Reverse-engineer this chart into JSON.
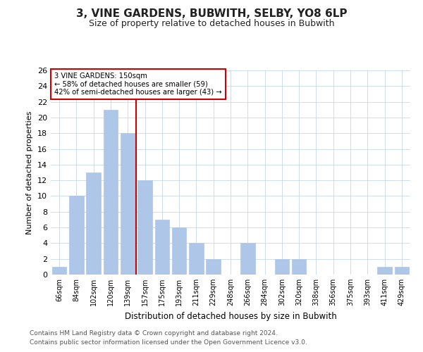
{
  "title": "3, VINE GARDENS, BUBWITH, SELBY, YO8 6LP",
  "subtitle": "Size of property relative to detached houses in Bubwith",
  "xlabel": "Distribution of detached houses by size in Bubwith",
  "ylabel": "Number of detached properties",
  "categories": [
    "66sqm",
    "84sqm",
    "102sqm",
    "120sqm",
    "139sqm",
    "157sqm",
    "175sqm",
    "193sqm",
    "211sqm",
    "229sqm",
    "248sqm",
    "266sqm",
    "284sqm",
    "302sqm",
    "320sqm",
    "338sqm",
    "356sqm",
    "375sqm",
    "393sqm",
    "411sqm",
    "429sqm"
  ],
  "values": [
    1,
    10,
    13,
    21,
    18,
    12,
    7,
    6,
    4,
    2,
    0,
    4,
    0,
    2,
    2,
    0,
    0,
    0,
    0,
    1,
    1
  ],
  "bar_color": "#aec6e8",
  "bar_edgecolor": "#aec6e8",
  "redline_x": 4.5,
  "annotation_title": "3 VINE GARDENS: 150sqm",
  "annotation_line1": "← 58% of detached houses are smaller (59)",
  "annotation_line2": "42% of semi-detached houses are larger (43) →",
  "redline_color": "#cc0000",
  "box_edgecolor": "#cc0000",
  "ylim": [
    0,
    26
  ],
  "yticks": [
    0,
    2,
    4,
    6,
    8,
    10,
    12,
    14,
    16,
    18,
    20,
    22,
    24,
    26
  ],
  "footnote1": "Contains HM Land Registry data © Crown copyright and database right 2024.",
  "footnote2": "Contains public sector information licensed under the Open Government Licence v3.0.",
  "background_color": "#ffffff",
  "grid_color": "#c8d8e8"
}
